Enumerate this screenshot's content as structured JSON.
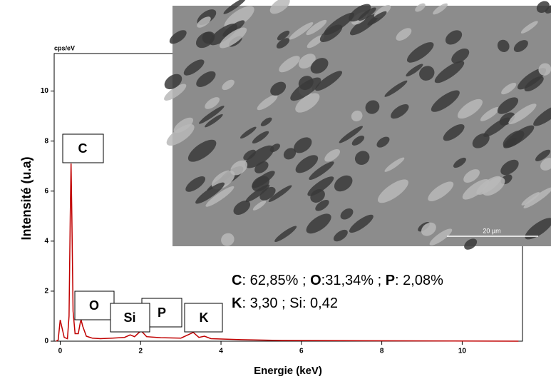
{
  "chart_data": {
    "type": "line",
    "y_unit_label": "cps/eV",
    "y_axis_label": "Intensité (u.a)",
    "x_axis_label": "Energie (keV)",
    "x": [
      -0.1,
      -0.05,
      0,
      0.05,
      0.1,
      0.18,
      0.22,
      0.25,
      0.27,
      0.29,
      0.32,
      0.37,
      0.45,
      0.5,
      0.52,
      0.56,
      0.65,
      0.8,
      1.0,
      1.3,
      1.6,
      1.74,
      1.85,
      2.01,
      2.15,
      2.5,
      3.0,
      3.31,
      3.45,
      3.59,
      3.75,
      4.5,
      5.5,
      7,
      9,
      11.4
    ],
    "series": [
      {
        "color": "#c00000",
        "values": [
          0,
          0.05,
          0.85,
          0.5,
          0.15,
          0.1,
          1.0,
          5.0,
          7.1,
          5.0,
          1.2,
          0.3,
          0.3,
          0.75,
          0.85,
          0.6,
          0.2,
          0.12,
          0.1,
          0.12,
          0.15,
          0.25,
          0.18,
          0.42,
          0.18,
          0.14,
          0.12,
          0.35,
          0.15,
          0.2,
          0.1,
          0.06,
          0.03,
          0.02,
          0.01,
          0
        ]
      }
    ],
    "xlim": [
      -0.15,
      11.5
    ],
    "xticks": [
      0,
      2,
      4,
      6,
      8,
      10
    ],
    "ylim": [
      0,
      11.5
    ],
    "yticks": [
      0,
      2,
      4,
      6,
      8,
      10
    ],
    "peak_labels": [
      "C",
      "O",
      "Si",
      "P",
      "K"
    ],
    "composition": {
      "line1": [
        "C",
        ": 62,85% ; ",
        "O",
        ":31,34% ; ",
        "P",
        ": 2,08%"
      ],
      "line2": [
        "K",
        ": 3,30 ; Si: 0,42"
      ]
    },
    "scale_bar": "20 µm"
  }
}
